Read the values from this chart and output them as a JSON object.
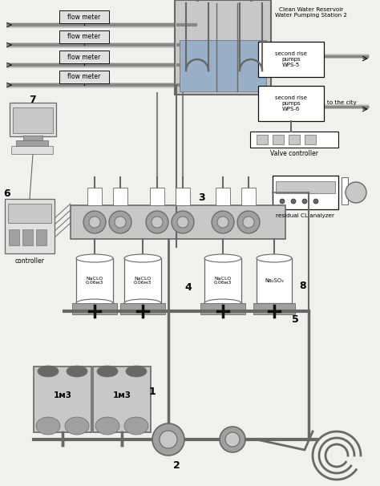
{
  "bg_color": "#f0f0ec",
  "flow_meter_labels": [
    "flow meter",
    "flow meter",
    "flow meter",
    "flow meter"
  ],
  "reservoir_label": "Clean Water Reservoir\nWater Pumping Station 2",
  "wps5_label": "second rise\npumps\nWPS-5",
  "wps6_label": "second rise\npumps\nWPS-6",
  "to_city_label": "to the city",
  "valve_controller_label": "Valve controller",
  "residual_cl_label": "residual CL analyzer",
  "controller_label": "controller",
  "naclo_label": "NaCLO\n0.06м3",
  "na2so3_label": "Na₂SO₃",
  "tank_label": "1м3",
  "gray_light": "#c8c8c8",
  "gray_mid": "#a0a0a0",
  "gray_dark": "#686868",
  "white": "#ffffff",
  "black": "#111111",
  "box_fill": "#e0e0e0",
  "pipe_color": "#888888",
  "water_fill": "#9ab0c8"
}
